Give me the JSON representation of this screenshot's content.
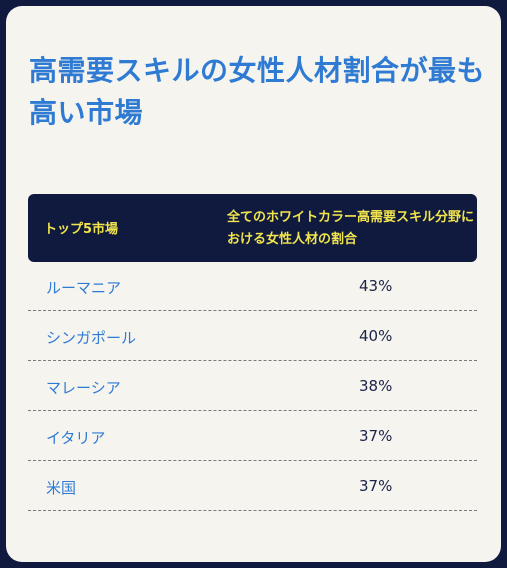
{
  "title": "高需要スキルの女性人材割合が最も高い市場",
  "table": {
    "header": {
      "col1": "トップ5市場",
      "col2": "全てのホワイトカラー高需要スキル分野における女性人材の割合"
    },
    "rows": [
      {
        "market": "ルーマニア",
        "share": "43%"
      },
      {
        "market": "シンガポール",
        "share": "40%"
      },
      {
        "market": "マレーシア",
        "share": "38%"
      },
      {
        "market": "イタリア",
        "share": "37%"
      },
      {
        "market": "米国",
        "share": "37%"
      }
    ]
  }
}
